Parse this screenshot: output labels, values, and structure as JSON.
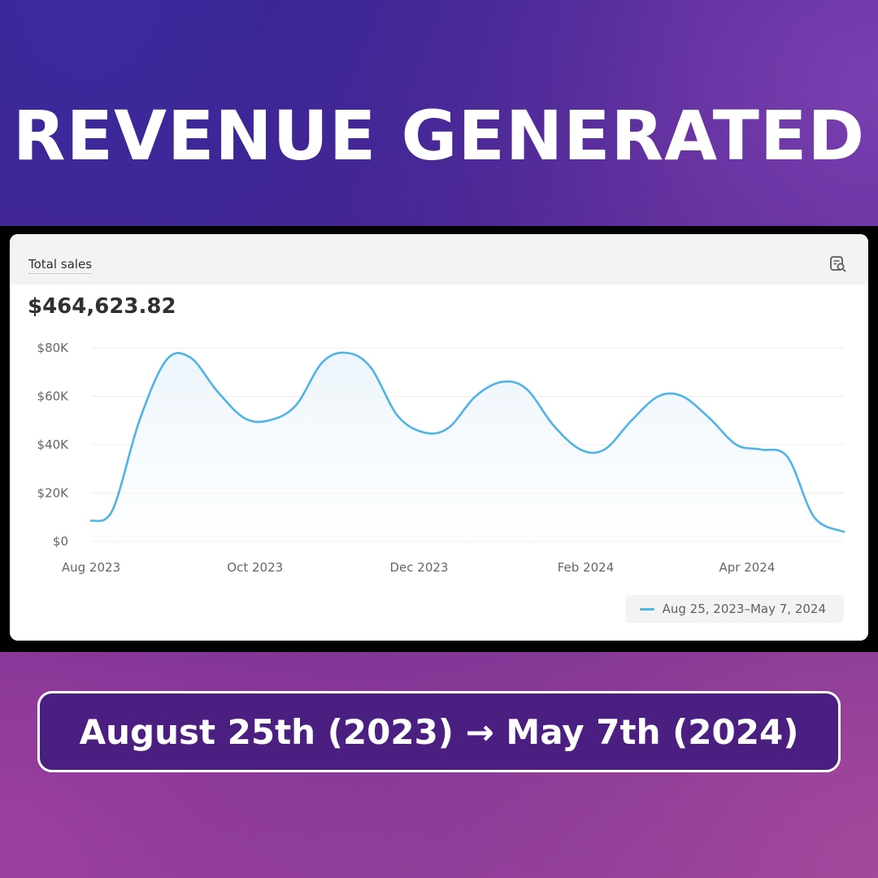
{
  "headline": "REVENUE GENERATED",
  "card": {
    "title": "Total sales",
    "icon": "report-search-icon",
    "total": "$464,623.82"
  },
  "chart_data": {
    "type": "area",
    "title": "Total sales",
    "xlabel": "",
    "ylabel": "",
    "y_ticks": [
      "$80K",
      "$60K",
      "$40K",
      "$20K",
      "$0"
    ],
    "y_tick_values": [
      80000,
      60000,
      40000,
      20000,
      0
    ],
    "ylim": [
      0,
      80000
    ],
    "x_ticks": [
      "Aug 2023",
      "Oct 2023",
      "Dec 2023",
      "Feb 2024",
      "Apr 2024"
    ],
    "x_tick_dates": [
      "2023-08-01",
      "2023-10-01",
      "2023-12-01",
      "2024-02-01",
      "2024-04-01"
    ],
    "xlim": [
      "2023-08-01",
      "2024-05-07"
    ],
    "grid": true,
    "legend_position": "bottom-right",
    "series": [
      {
        "name": "Aug 25, 2023–May 7, 2024",
        "color": "#4fb3e8",
        "x": [
          "2023-08-01",
          "2023-08-09",
          "2023-08-19",
          "2023-08-29",
          "2023-09-07",
          "2023-09-17",
          "2023-09-27",
          "2023-10-06",
          "2023-10-16",
          "2023-10-26",
          "2023-11-04",
          "2023-11-13",
          "2023-11-23",
          "2023-12-03",
          "2023-12-12",
          "2023-12-22",
          "2024-01-01",
          "2024-01-10",
          "2024-01-20",
          "2024-01-30",
          "2024-02-08",
          "2024-02-18",
          "2024-02-28",
          "2024-03-08",
          "2024-03-18",
          "2024-03-28",
          "2024-04-06",
          "2024-04-16",
          "2024-04-26",
          "2024-05-07"
        ],
        "values": [
          8500,
          13000,
          50000,
          75000,
          76000,
          62000,
          51000,
          50000,
          56000,
          74000,
          78000,
          72000,
          52000,
          45000,
          47000,
          60000,
          66000,
          63000,
          48000,
          38000,
          38000,
          50000,
          60000,
          60000,
          51000,
          40000,
          38000,
          35000,
          10000,
          4000
        ]
      }
    ]
  },
  "footer": {
    "text": "August 25th (2023) → May 7th (2024)"
  }
}
